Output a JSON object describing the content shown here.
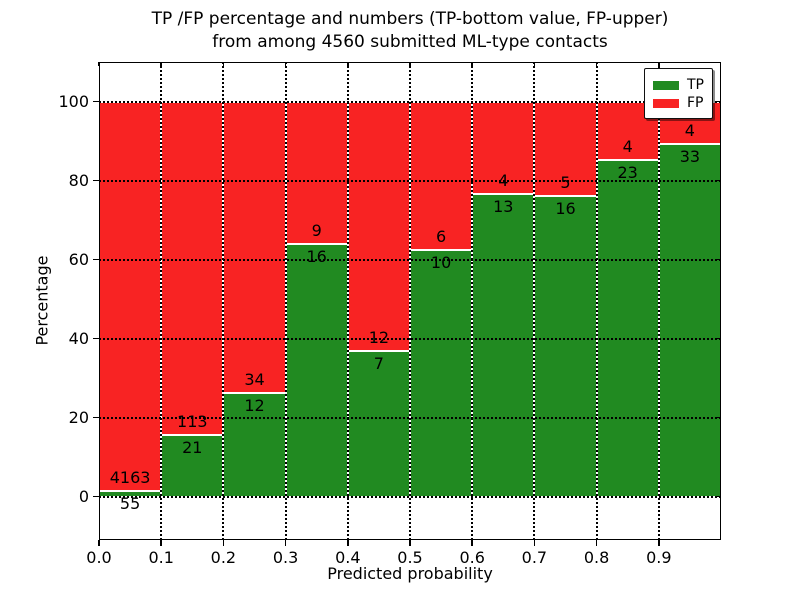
{
  "title": {
    "line1": "TP /FP percentage and numbers (TP-bottom value, FP-upper)",
    "line2": "from among 4560 submitted ML-type contacts"
  },
  "chart_data": {
    "type": "bar",
    "stacked": true,
    "normalized_to_percent": 100,
    "title": "TP /FP percentage and numbers (TP-bottom value, FP-upper)\nfrom among 4560 submitted ML-type contacts",
    "xlabel": "Predicted probability",
    "ylabel": "Percentage",
    "bin_edges": [
      0.0,
      0.1,
      0.2,
      0.3,
      0.4,
      0.5,
      0.6,
      0.7,
      0.8,
      0.9,
      1.0
    ],
    "series": [
      {
        "name": "TP",
        "color": "#218a21",
        "values": [
          55,
          21,
          12,
          16,
          7,
          10,
          13,
          16,
          23,
          33
        ]
      },
      {
        "name": "FP",
        "color": "#f82323",
        "values": [
          4163,
          113,
          34,
          9,
          12,
          6,
          4,
          5,
          4,
          4
        ]
      }
    ],
    "tp_percent_of_bin": [
      1.3,
      15.67,
      26.09,
      64.0,
      36.84,
      62.5,
      76.47,
      76.19,
      85.19,
      89.19
    ],
    "total_contacts": 4560,
    "xlim": [
      0.0,
      1.0
    ],
    "ylim_render": [
      -11,
      110
    ],
    "xticks": [
      "0.0",
      "0.1",
      "0.2",
      "0.3",
      "0.4",
      "0.5",
      "0.6",
      "0.7",
      "0.8",
      "0.9"
    ],
    "yticks": [
      "0",
      "20",
      "40",
      "60",
      "80",
      "100"
    ],
    "ytick_values": [
      0,
      20,
      40,
      60,
      80,
      100
    ],
    "grid": true,
    "grid_style": "dotted",
    "bar_edge_color": "#ffffff",
    "legend": {
      "position": "upper right"
    }
  }
}
